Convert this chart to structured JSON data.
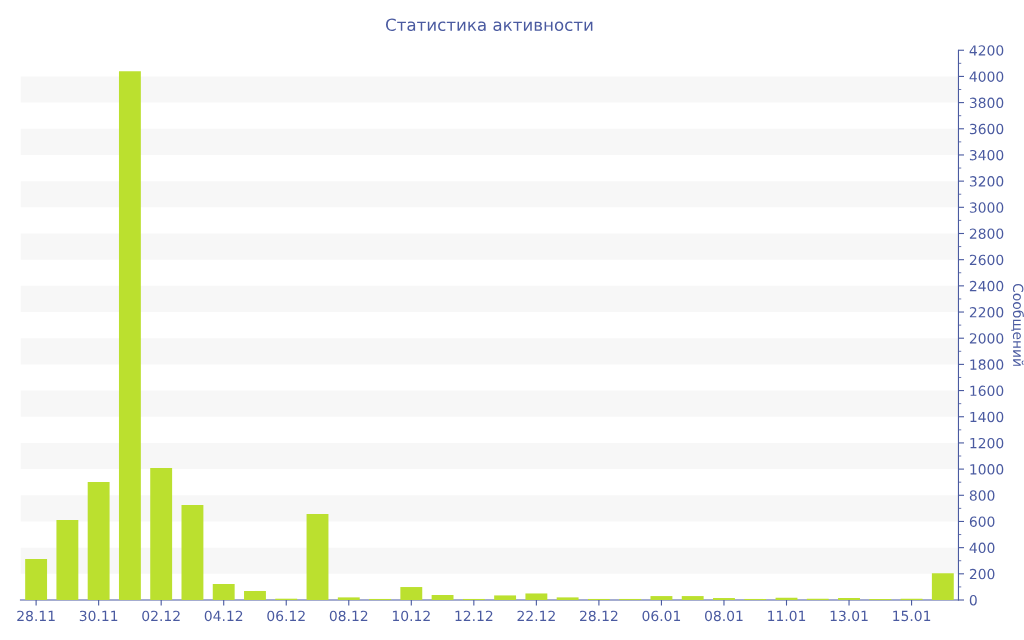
{
  "chart_data": {
    "type": "bar",
    "title": "Статистика активности",
    "ylabel": "Сообщений",
    "categories": [
      "28.11",
      null,
      "30.11",
      null,
      "02.12",
      null,
      "04.12",
      null,
      "06.12",
      null,
      "08.12",
      null,
      "10.12",
      null,
      "12.12",
      null,
      "22.12",
      null,
      "28.12",
      null,
      "06.01",
      null,
      "08.01",
      null,
      "11.01",
      null,
      "13.01",
      null,
      "15.01",
      null
    ],
    "values": [
      313,
      611,
      901,
      4040,
      1008,
      725,
      122,
      69,
      10,
      657,
      20,
      8,
      99,
      38,
      8,
      35,
      50,
      20,
      8,
      8,
      30,
      30,
      15,
      8,
      18,
      10,
      15,
      8,
      10,
      205
    ],
    "color": "#bbe02f",
    "ylim": [
      0,
      4200
    ],
    "yticks": [
      0,
      200,
      400,
      600,
      800,
      1000,
      1200,
      1400,
      1600,
      1800,
      2000,
      2200,
      2400,
      2600,
      2800,
      3000,
      3200,
      3400,
      3600,
      3800,
      4000,
      4200
    ],
    "bands": [
      {
        "axis": "y",
        "from": 200,
        "to": 400,
        "color": "#f7f7f7"
      },
      {
        "axis": "y",
        "from": 600,
        "to": 800,
        "color": "#f7f7f7"
      },
      {
        "axis": "y",
        "from": 1000,
        "to": 1200,
        "color": "#f7f7f7"
      },
      {
        "axis": "y",
        "from": 1400,
        "to": 1600,
        "color": "#f7f7f7"
      },
      {
        "axis": "y",
        "from": 1800,
        "to": 2000,
        "color": "#f7f7f7"
      },
      {
        "axis": "y",
        "from": 2200,
        "to": 2400,
        "color": "#f7f7f7"
      },
      {
        "axis": "y",
        "from": 2600,
        "to": 2800,
        "color": "#f7f7f7"
      },
      {
        "axis": "y",
        "from": 3000,
        "to": 3200,
        "color": "#f7f7f7"
      },
      {
        "axis": "y",
        "from": 3400,
        "to": 3600,
        "color": "#f7f7f7"
      },
      {
        "axis": "y",
        "from": 3800,
        "to": 4000,
        "color": "#f7f7f7"
      }
    ]
  }
}
